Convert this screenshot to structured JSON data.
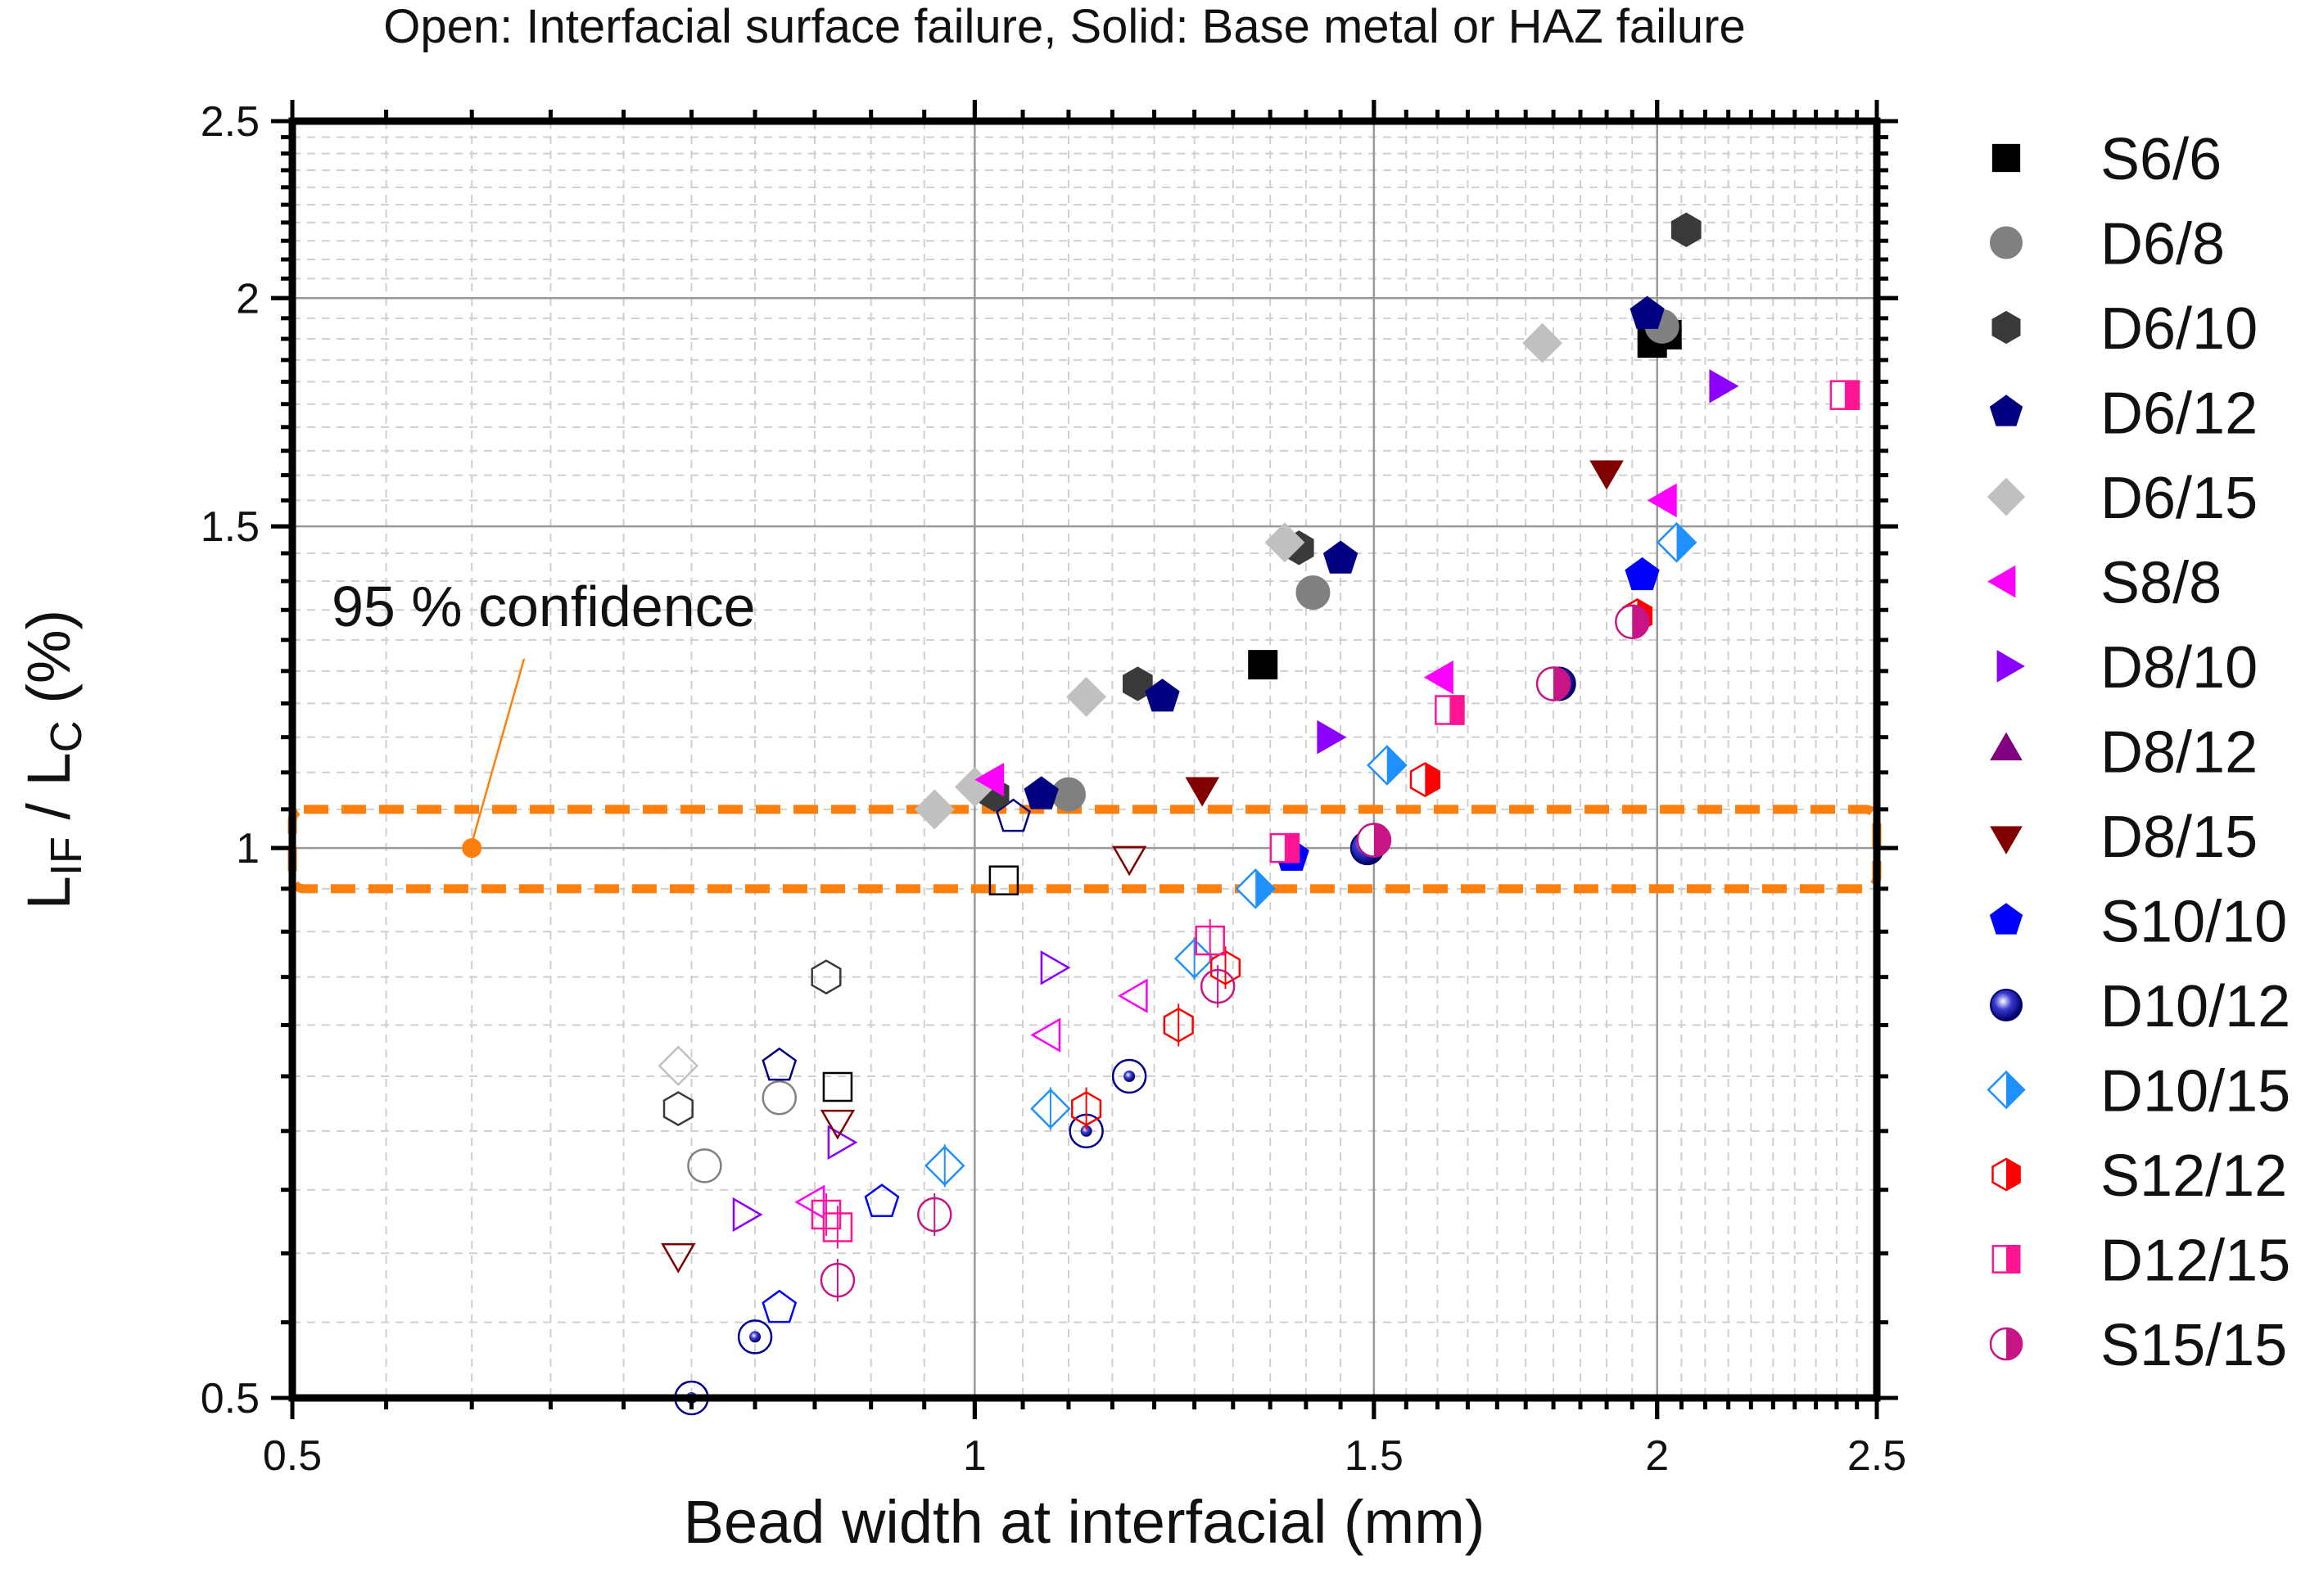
{
  "chart_data": {
    "type": "scatter",
    "title": "Open: Interfacial surface failure,  Solid: Base metal or HAZ failure",
    "xlabel": "Bead width at interfacial (mm)",
    "ylabel": {
      "base": "L",
      "sub1": "IF",
      "mid": " / L",
      "sub2": "C",
      "tail": " (%)"
    },
    "xscale": "log",
    "yscale": "log",
    "xlim": [
      0.5,
      2.5
    ],
    "ylim": [
      0.5,
      2.5
    ],
    "xticks": [
      {
        "v": 0.5,
        "label": "0.5"
      },
      {
        "v": 1,
        "label": "1"
      },
      {
        "v": 1.5,
        "label": "1.5"
      },
      {
        "v": 2,
        "label": "2"
      },
      {
        "v": 2.5,
        "label": "2.5"
      }
    ],
    "yticks": [
      {
        "v": 0.5,
        "label": "0.5"
      },
      {
        "v": 1,
        "label": "1"
      },
      {
        "v": 1.5,
        "label": "1.5"
      },
      {
        "v": 2,
        "label": "2"
      },
      {
        "v": 2.5,
        "label": "2.5"
      }
    ],
    "grid": true,
    "legend_position": "right",
    "annotation": {
      "text": "95 % confidence",
      "point": [
        0.6,
        1.0
      ]
    },
    "confidence_band": [
      0.95,
      1.05
    ],
    "series": [
      {
        "name": "S6/6",
        "marker": "square",
        "color": "#000000",
        "fill": "solid",
        "solid": [
          [
            1.34,
            1.26
          ],
          [
            1.99,
            1.89
          ],
          [
            2.02,
            1.91
          ]
        ],
        "open": [
          [
            1.03,
            0.96
          ],
          [
            0.87,
            0.74
          ]
        ]
      },
      {
        "name": "D6/8",
        "marker": "circle",
        "color": "#808080",
        "fill": "solid",
        "solid": [
          [
            1.1,
            1.07
          ],
          [
            1.41,
            1.38
          ],
          [
            2.01,
            1.93
          ]
        ],
        "open": [
          [
            0.82,
            0.73
          ],
          [
            0.76,
            0.67
          ]
        ]
      },
      {
        "name": "D6/10",
        "marker": "hexagon",
        "color": "#3a3a3a",
        "fill": "solid",
        "solid": [
          [
            1.02,
            1.07
          ],
          [
            1.18,
            1.23
          ],
          [
            1.39,
            1.46
          ],
          [
            2.06,
            2.18
          ]
        ],
        "open": [
          [
            0.74,
            0.72
          ],
          [
            0.86,
            0.85
          ]
        ]
      },
      {
        "name": "D6/12",
        "marker": "pentagon",
        "color": "#000080",
        "fill": "solid",
        "solid": [
          [
            1.07,
            1.07
          ],
          [
            1.21,
            1.21
          ],
          [
            1.45,
            1.44
          ],
          [
            1.98,
            1.96
          ]
        ],
        "open": [
          [
            0.82,
            0.76
          ],
          [
            1.04,
            1.04
          ]
        ]
      },
      {
        "name": "D6/15",
        "marker": "diamond",
        "color": "#c0c0c0",
        "fill": "solid",
        "solid": [
          [
            0.96,
            1.05
          ],
          [
            1.0,
            1.08
          ],
          [
            1.12,
            1.21
          ],
          [
            1.37,
            1.47
          ],
          [
            1.78,
            1.89
          ]
        ],
        "open": [
          [
            0.74,
            0.76
          ]
        ]
      },
      {
        "name": "S8/8",
        "marker": "triangle-left",
        "color": "#ff00ff",
        "fill": "solid",
        "solid": [
          [
            1.02,
            1.09
          ],
          [
            1.61,
            1.24
          ],
          [
            2.02,
            1.55
          ]
        ],
        "open": [
          [
            1.08,
            0.79
          ],
          [
            1.18,
            0.83
          ],
          [
            0.85,
            0.64
          ]
        ]
      },
      {
        "name": "D8/10",
        "marker": "triangle-right",
        "color": "#8b00ff",
        "fill": "solid",
        "solid": [
          [
            1.43,
            1.15
          ],
          [
            2.13,
            1.79
          ]
        ],
        "open": [
          [
            1.08,
            0.86
          ],
          [
            0.87,
            0.69
          ],
          [
            0.79,
            0.63
          ]
        ]
      },
      {
        "name": "D8/12",
        "marker": "triangle-up",
        "color": "#800080",
        "fill": "solid",
        "solid": [],
        "open": []
      },
      {
        "name": "D8/15",
        "marker": "triangle-down",
        "color": "#800000",
        "fill": "solid",
        "solid": [
          [
            1.26,
            1.08
          ],
          [
            1.9,
            1.61
          ]
        ],
        "open": [
          [
            1.17,
            0.99
          ],
          [
            0.74,
            0.6
          ],
          [
            0.87,
            0.71
          ]
        ]
      },
      {
        "name": "S10/10",
        "marker": "pentagon",
        "color": "#0000ff",
        "fill": "solid",
        "solid": [
          [
            1.38,
            0.99
          ],
          [
            1.97,
            1.41
          ]
        ],
        "open": [
          [
            0.91,
            0.64
          ],
          [
            0.82,
            0.56
          ]
        ]
      },
      {
        "name": "D10/12",
        "marker": "sphere",
        "color": "#00008b",
        "fill": "solid",
        "solid": [
          [
            1.49,
            1.0
          ],
          [
            1.81,
            1.23
          ]
        ],
        "open": [
          [
            1.12,
            0.7
          ],
          [
            1.17,
            0.75
          ],
          [
            0.8,
            0.54
          ],
          [
            0.75,
            0.5
          ]
        ]
      },
      {
        "name": "D10/15",
        "marker": "diamond-half",
        "color": "#1e90ff",
        "fill": "half",
        "solid": [
          [
            1.33,
            0.95
          ],
          [
            1.52,
            1.11
          ],
          [
            2.04,
            1.47
          ]
        ],
        "open": [
          [
            1.25,
            0.87
          ],
          [
            1.08,
            0.72
          ],
          [
            0.97,
            0.67
          ]
        ]
      },
      {
        "name": "S12/12",
        "marker": "hexagon-half",
        "color": "#ff0000",
        "fill": "half",
        "solid": [
          [
            1.58,
            1.09
          ],
          [
            1.96,
            1.34
          ]
        ],
        "open": [
          [
            1.29,
            0.86
          ],
          [
            1.12,
            0.72
          ],
          [
            1.23,
            0.8
          ]
        ]
      },
      {
        "name": "D12/15",
        "marker": "square-half",
        "color": "#ff1493",
        "fill": "half",
        "solid": [
          [
            1.37,
            1.0
          ],
          [
            1.62,
            1.19
          ],
          [
            2.42,
            1.77
          ]
        ],
        "open": [
          [
            1.27,
            0.89
          ],
          [
            0.86,
            0.63
          ],
          [
            0.87,
            0.62
          ]
        ]
      },
      {
        "name": "S15/15",
        "marker": "circle-half",
        "color": "#c71585",
        "fill": "half",
        "solid": [
          [
            1.5,
            1.01
          ],
          [
            1.8,
            1.23
          ],
          [
            1.95,
            1.33
          ]
        ],
        "open": [
          [
            1.28,
            0.84
          ],
          [
            0.96,
            0.63
          ],
          [
            0.87,
            0.58
          ]
        ]
      }
    ]
  }
}
